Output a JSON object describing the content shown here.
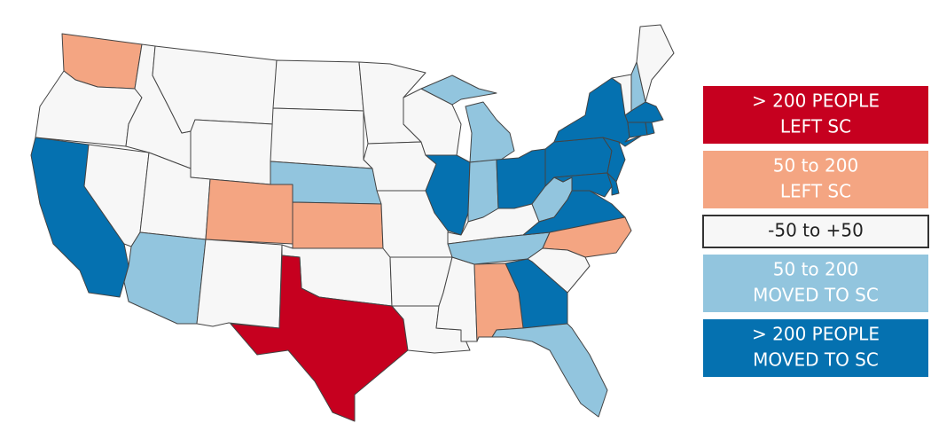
{
  "legend": {
    "items": [
      {
        "lines": [
          "> 200 PEOPLE",
          "LEFT SC"
        ],
        "color": "#c6001f"
      },
      {
        "lines": [
          "50 to 200",
          "LEFT SC"
        ],
        "color": "#f4a582"
      },
      {
        "lines": [
          "-50 to +50"
        ],
        "color": "#f7f7f7"
      },
      {
        "lines": [
          "50 to 200",
          "MOVED TO SC"
        ],
        "color": "#92c5de"
      },
      {
        "lines": [
          "> 200 PEOPLE",
          "MOVED TO SC"
        ],
        "color": "#0571b0"
      }
    ]
  }
}
